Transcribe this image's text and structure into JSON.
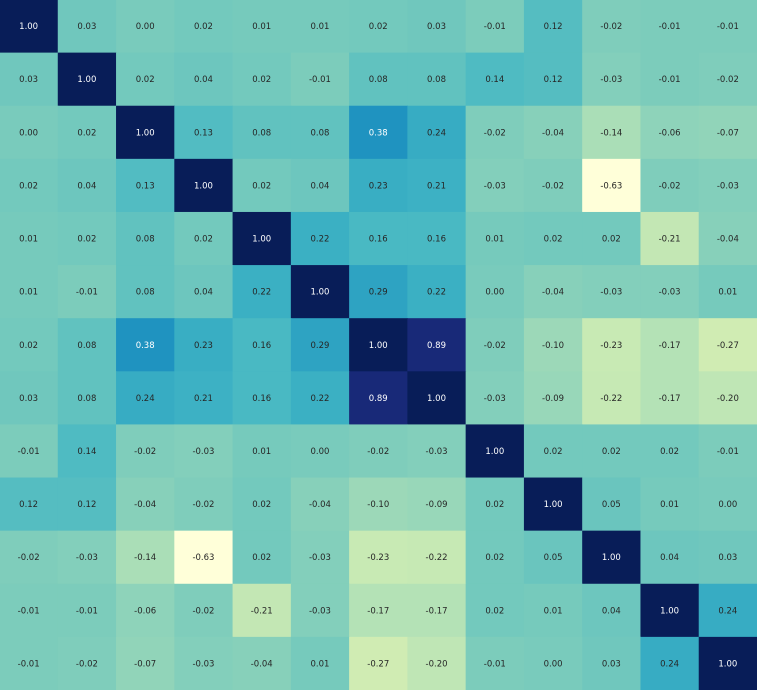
{
  "chart_data": {
    "type": "heatmap",
    "title": "",
    "xlabel": "",
    "ylabel": "",
    "colormap": "YlGnBu",
    "color_range": [
      -0.63,
      1.0
    ],
    "matrix": [
      [
        1.0,
        0.03,
        0.0,
        0.02,
        0.01,
        0.01,
        0.02,
        0.03,
        -0.01,
        0.12,
        -0.02,
        -0.01,
        -0.01
      ],
      [
        0.03,
        1.0,
        0.02,
        0.04,
        0.02,
        -0.01,
        0.08,
        0.08,
        0.14,
        0.12,
        -0.03,
        -0.01,
        -0.02
      ],
      [
        0.0,
        0.02,
        1.0,
        0.13,
        0.08,
        0.08,
        0.38,
        0.24,
        -0.02,
        -0.04,
        -0.14,
        -0.06,
        -0.07
      ],
      [
        0.02,
        0.04,
        0.13,
        1.0,
        0.02,
        0.04,
        0.23,
        0.21,
        -0.03,
        -0.02,
        -0.63,
        -0.02,
        -0.03
      ],
      [
        0.01,
        0.02,
        0.08,
        0.02,
        1.0,
        0.22,
        0.16,
        0.16,
        0.01,
        0.02,
        0.02,
        -0.21,
        -0.04
      ],
      [
        0.01,
        -0.01,
        0.08,
        0.04,
        0.22,
        1.0,
        0.29,
        0.22,
        0.0,
        -0.04,
        -0.03,
        -0.03,
        0.01
      ],
      [
        0.02,
        0.08,
        0.38,
        0.23,
        0.16,
        0.29,
        1.0,
        0.89,
        -0.02,
        -0.1,
        -0.23,
        -0.17,
        -0.27
      ],
      [
        0.03,
        0.08,
        0.24,
        0.21,
        0.16,
        0.22,
        0.89,
        1.0,
        -0.03,
        -0.09,
        -0.22,
        -0.17,
        -0.2
      ],
      [
        -0.01,
        0.14,
        -0.02,
        -0.03,
        0.01,
        0.0,
        -0.02,
        -0.03,
        1.0,
        0.02,
        0.02,
        0.02,
        -0.01
      ],
      [
        0.12,
        0.12,
        -0.04,
        -0.02,
        0.02,
        -0.04,
        -0.1,
        -0.09,
        0.02,
        1.0,
        0.05,
        0.01,
        0.0
      ],
      [
        -0.02,
        -0.03,
        -0.14,
        -0.63,
        0.02,
        -0.03,
        -0.23,
        -0.22,
        0.02,
        0.05,
        1.0,
        0.04,
        0.03
      ],
      [
        -0.01,
        -0.01,
        -0.06,
        -0.02,
        -0.21,
        -0.03,
        -0.17,
        -0.17,
        0.02,
        0.01,
        0.04,
        1.0,
        0.24
      ],
      [
        -0.01,
        -0.02,
        -0.07,
        -0.03,
        -0.04,
        0.01,
        -0.27,
        -0.2,
        -0.01,
        0.0,
        0.03,
        0.24,
        1.0
      ]
    ]
  }
}
